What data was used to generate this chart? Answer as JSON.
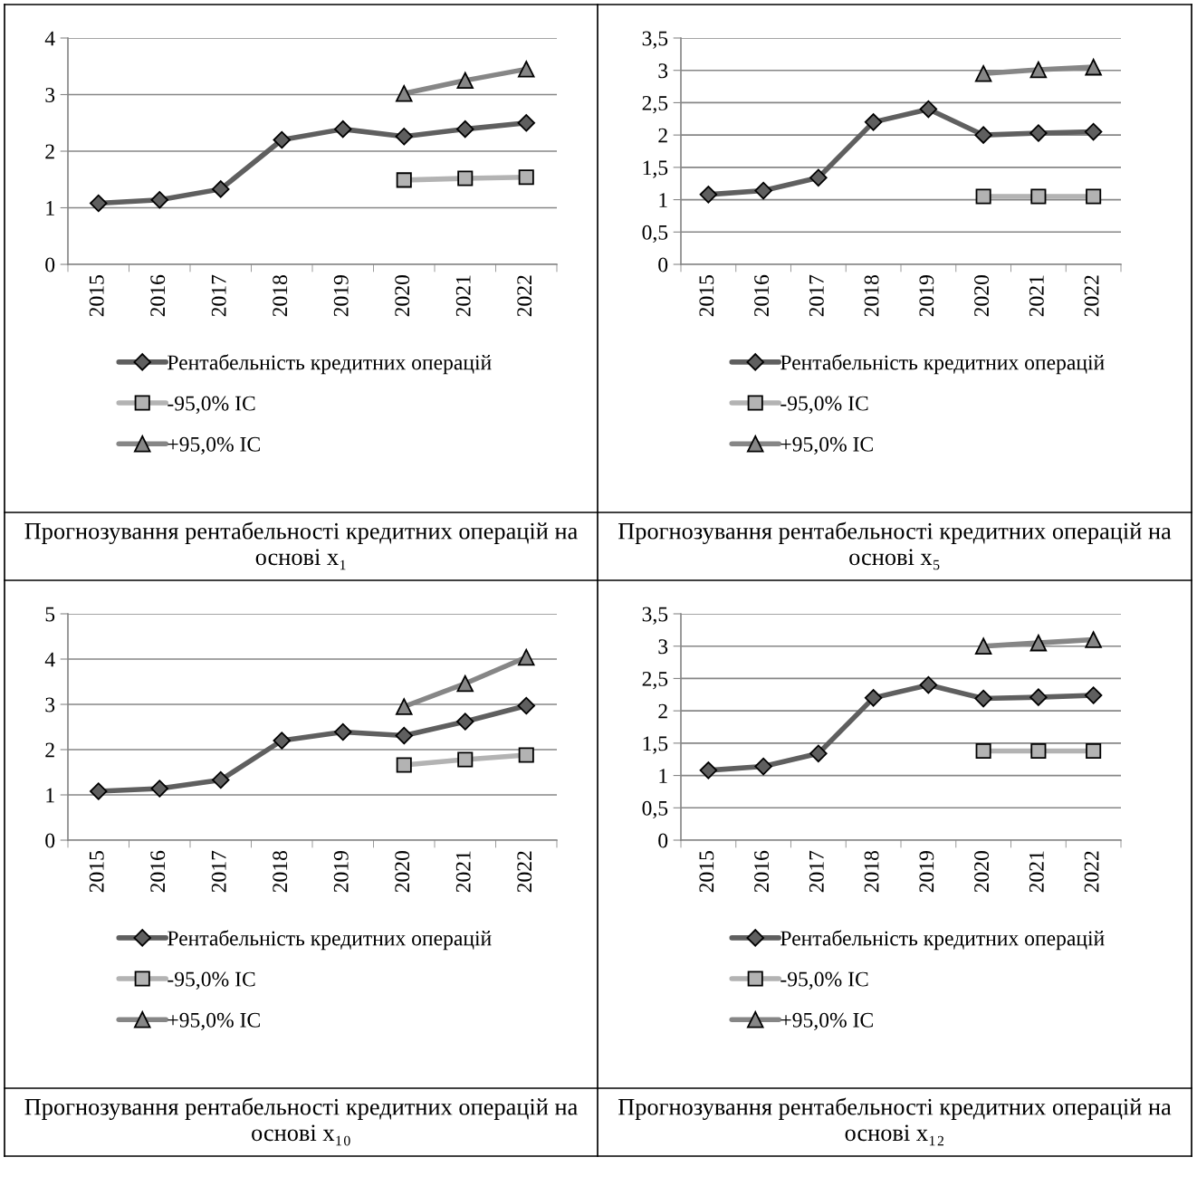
{
  "chart_data": [
    {
      "type": "line",
      "title": "Прогнозування рентабельності кредитних операцій на основі x₁",
      "categories": [
        "2015",
        "2016",
        "2017",
        "2018",
        "2019",
        "2020",
        "2021",
        "2022"
      ],
      "ylim": [
        0,
        4
      ],
      "yticks": [
        0,
        1,
        2,
        3,
        4
      ],
      "grid": "y",
      "legend": "bottom",
      "series": [
        {
          "name": "Рентабельність кредитних операцій",
          "color": "#5f5f5f",
          "marker": "diamond",
          "values": [
            1.08,
            1.14,
            1.33,
            2.2,
            2.39,
            2.26,
            2.39,
            2.5
          ]
        },
        {
          "name": "-95,0% ІС",
          "color": "#b3b3b3",
          "marker": "square",
          "values": [
            null,
            null,
            null,
            null,
            null,
            1.49,
            1.52,
            1.54
          ]
        },
        {
          "name": "+95,0% ІС",
          "color": "#868686",
          "marker": "triangle",
          "values": [
            null,
            null,
            null,
            null,
            null,
            3.02,
            3.25,
            3.45
          ]
        }
      ]
    },
    {
      "type": "line",
      "title": "Прогнозування рентабельності кредитних операцій на основі x₅",
      "categories": [
        "2015",
        "2016",
        "2017",
        "2018",
        "2019",
        "2020",
        "2021",
        "2022"
      ],
      "ylim": [
        0,
        3.5
      ],
      "yticks": [
        0,
        {
          "value": 0.5,
          "label": "0,5"
        },
        1,
        {
          "value": 1.5,
          "label": "1,5"
        },
        2,
        {
          "value": 2.5,
          "label": "2,5"
        },
        3,
        {
          "value": 3.5,
          "label": "3,5"
        }
      ],
      "grid": "y",
      "legend": "bottom",
      "series": [
        {
          "name": "Рентабельність кредитних операцій",
          "color": "#5f5f5f",
          "marker": "diamond",
          "values": [
            1.08,
            1.14,
            1.34,
            2.2,
            2.4,
            2.0,
            2.03,
            2.05
          ]
        },
        {
          "name": "-95,0% ІС",
          "color": "#b3b3b3",
          "marker": "square",
          "values": [
            null,
            null,
            null,
            null,
            null,
            1.05,
            1.05,
            1.05
          ]
        },
        {
          "name": "+95,0% ІС",
          "color": "#868686",
          "marker": "triangle",
          "values": [
            null,
            null,
            null,
            null,
            null,
            2.95,
            3.01,
            3.05
          ]
        }
      ]
    },
    {
      "type": "line",
      "title": "Прогнозування рентабельності кредитних операцій на основі x₁₀",
      "categories": [
        "2015",
        "2016",
        "2017",
        "2018",
        "2019",
        "2020",
        "2021",
        "2022"
      ],
      "ylim": [
        0,
        5
      ],
      "yticks": [
        0,
        1,
        2,
        3,
        4,
        5
      ],
      "grid": "y",
      "legend": "bottom",
      "series": [
        {
          "name": "Рентабельність кредитних операцій",
          "color": "#5f5f5f",
          "marker": "diamond",
          "values": [
            1.08,
            1.14,
            1.33,
            2.2,
            2.39,
            2.31,
            2.62,
            2.97
          ]
        },
        {
          "name": "-95,0% ІС",
          "color": "#b3b3b3",
          "marker": "square",
          "values": [
            null,
            null,
            null,
            null,
            null,
            1.66,
            1.78,
            1.88
          ]
        },
        {
          "name": "+95,0% ІС",
          "color": "#868686",
          "marker": "triangle",
          "values": [
            null,
            null,
            null,
            null,
            null,
            2.95,
            3.46,
            4.04
          ]
        }
      ]
    },
    {
      "type": "line",
      "title": "Прогнозування рентабельності кредитних операцій на основі x₁₂",
      "categories": [
        "2015",
        "2016",
        "2017",
        "2018",
        "2019",
        "2020",
        "2021",
        "2022"
      ],
      "ylim": [
        0,
        3.5
      ],
      "yticks": [
        0,
        {
          "value": 0.5,
          "label": "0,5"
        },
        1,
        {
          "value": 1.5,
          "label": "1,5"
        },
        2,
        {
          "value": 2.5,
          "label": "2,5"
        },
        3,
        {
          "value": 3.5,
          "label": "3,5"
        }
      ],
      "grid": "y",
      "legend": "bottom",
      "series": [
        {
          "name": "Рентабельність кредитних операцій",
          "color": "#5f5f5f",
          "marker": "diamond",
          "values": [
            1.08,
            1.14,
            1.34,
            2.2,
            2.4,
            2.19,
            2.21,
            2.24
          ]
        },
        {
          "name": "-95,0% ІС",
          "color": "#b3b3b3",
          "marker": "square",
          "values": [
            null,
            null,
            null,
            null,
            null,
            1.38,
            1.38,
            1.38
          ]
        },
        {
          "name": "+95,0% ІС",
          "color": "#868686",
          "marker": "triangle",
          "values": [
            null,
            null,
            null,
            null,
            null,
            3.0,
            3.05,
            3.1
          ]
        }
      ]
    }
  ]
}
